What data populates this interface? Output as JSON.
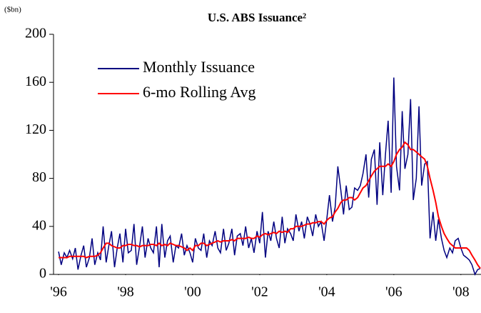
{
  "chart_data": {
    "type": "line",
    "title": "U.S. ABS Issuance²",
    "ylabel": "($bn)",
    "x": [
      1996.0,
      1996.08,
      1996.17,
      1996.25,
      1996.33,
      1996.42,
      1996.5,
      1996.58,
      1996.67,
      1996.75,
      1996.83,
      1996.92,
      1997.0,
      1997.08,
      1997.17,
      1997.25,
      1997.33,
      1997.42,
      1997.5,
      1997.58,
      1997.67,
      1997.75,
      1997.83,
      1997.92,
      1998.0,
      1998.08,
      1998.17,
      1998.25,
      1998.33,
      1998.42,
      1998.5,
      1998.58,
      1998.67,
      1998.75,
      1998.83,
      1998.92,
      1999.0,
      1999.08,
      1999.17,
      1999.25,
      1999.33,
      1999.42,
      1999.5,
      1999.58,
      1999.67,
      1999.75,
      1999.83,
      1999.92,
      2000.0,
      2000.08,
      2000.17,
      2000.25,
      2000.33,
      2000.42,
      2000.5,
      2000.58,
      2000.67,
      2000.75,
      2000.83,
      2000.92,
      2001.0,
      2001.08,
      2001.17,
      2001.25,
      2001.33,
      2001.42,
      2001.5,
      2001.58,
      2001.67,
      2001.75,
      2001.83,
      2001.92,
      2002.0,
      2002.08,
      2002.17,
      2002.25,
      2002.33,
      2002.42,
      2002.5,
      2002.58,
      2002.67,
      2002.75,
      2002.83,
      2002.92,
      2003.0,
      2003.08,
      2003.17,
      2003.25,
      2003.33,
      2003.42,
      2003.5,
      2003.58,
      2003.67,
      2003.75,
      2003.83,
      2003.92,
      2004.0,
      2004.08,
      2004.17,
      2004.25,
      2004.33,
      2004.42,
      2004.5,
      2004.58,
      2004.67,
      2004.75,
      2004.83,
      2004.92,
      2005.0,
      2005.08,
      2005.17,
      2005.25,
      2005.33,
      2005.42,
      2005.5,
      2005.58,
      2005.67,
      2005.75,
      2005.83,
      2005.92,
      2006.0,
      2006.08,
      2006.17,
      2006.25,
      2006.33,
      2006.42,
      2006.5,
      2006.58,
      2006.67,
      2006.75,
      2006.83,
      2006.92,
      2007.0,
      2007.08,
      2007.17,
      2007.25,
      2007.33,
      2007.42,
      2007.5,
      2007.58,
      2007.67,
      2007.75,
      2007.83,
      2007.92,
      2008.0,
      2008.08,
      2008.17,
      2008.25,
      2008.33,
      2008.42,
      2008.5,
      2008.58
    ],
    "series": [
      {
        "name": "Monthly Issuance",
        "color": "#000080",
        "values": [
          19,
          8,
          18,
          14,
          20,
          13,
          22,
          4,
          16,
          24,
          6,
          14,
          30,
          8,
          18,
          12,
          40,
          10,
          24,
          36,
          6,
          22,
          34,
          10,
          38,
          18,
          20,
          42,
          8,
          24,
          40,
          14,
          30,
          22,
          18,
          40,
          6,
          42,
          14,
          28,
          32,
          10,
          24,
          22,
          34,
          16,
          24,
          18,
          10,
          30,
          22,
          20,
          34,
          14,
          28,
          24,
          36,
          22,
          18,
          38,
          20,
          26,
          38,
          16,
          32,
          34,
          24,
          40,
          22,
          30,
          18,
          36,
          26,
          52,
          14,
          36,
          28,
          44,
          30,
          22,
          48,
          26,
          38,
          34,
          28,
          50,
          36,
          44,
          30,
          48,
          42,
          32,
          50,
          40,
          44,
          28,
          46,
          66,
          44,
          56,
          90,
          70,
          50,
          74,
          54,
          56,
          72,
          70,
          74,
          84,
          100,
          64,
          96,
          104,
          58,
          110,
          66,
          100,
          128,
          68,
          164,
          90,
          70,
          136,
          88,
          100,
          146,
          62,
          80,
          140,
          74,
          92,
          94,
          30,
          52,
          28,
          46,
          30,
          20,
          14,
          22,
          18,
          28,
          30,
          22,
          16,
          14,
          12,
          8,
          0,
          4,
          5
        ]
      },
      {
        "name": "6-mo Rolling Avg",
        "color": "#ff0000",
        "values": [
          14,
          14,
          14,
          14,
          15,
          15,
          15,
          15,
          15,
          15,
          14,
          15,
          15,
          15,
          16,
          18,
          22,
          26,
          26,
          24,
          23,
          22,
          22,
          24,
          24,
          25,
          25,
          24,
          24,
          23,
          24,
          24,
          24,
          25,
          25,
          24,
          26,
          24,
          25,
          24,
          26,
          25,
          24,
          24,
          23,
          22,
          20,
          22,
          20,
          24,
          24,
          26,
          26,
          24,
          25,
          26,
          27,
          28,
          27,
          28,
          28,
          28,
          29,
          28,
          30,
          30,
          30,
          30,
          31,
          30,
          30,
          32,
          31,
          33,
          34,
          33,
          34,
          35,
          34,
          36,
          35,
          36,
          35,
          38,
          38,
          40,
          40,
          40,
          41,
          42,
          42,
          43,
          43,
          44,
          44,
          42,
          45,
          47,
          48,
          52,
          55,
          60,
          62,
          62,
          64,
          64,
          62,
          64,
          68,
          72,
          74,
          78,
          82,
          86,
          88,
          90,
          90,
          90,
          92,
          90,
          94,
          100,
          104,
          106,
          110,
          108,
          104,
          104,
          102,
          100,
          98,
          96,
          90,
          80,
          70,
          60,
          48,
          40,
          34,
          30,
          26,
          24,
          22,
          22,
          22,
          22,
          22,
          20,
          16,
          12,
          8,
          5
        ]
      }
    ],
    "xlim": [
      1995.85,
      2008.6
    ],
    "xticks": [
      {
        "value": 1996,
        "label": "'96"
      },
      {
        "value": 1998,
        "label": "'98"
      },
      {
        "value": 2000,
        "label": "'00"
      },
      {
        "value": 2002,
        "label": "'02"
      },
      {
        "value": 2004,
        "label": "'04"
      },
      {
        "value": 2006,
        "label": "'06"
      },
      {
        "value": 2008,
        "label": "'08"
      }
    ],
    "ylim": [
      0,
      200
    ],
    "yticks": [
      0,
      40,
      80,
      120,
      160,
      200
    ],
    "legend": "upper left",
    "grid": false
  }
}
